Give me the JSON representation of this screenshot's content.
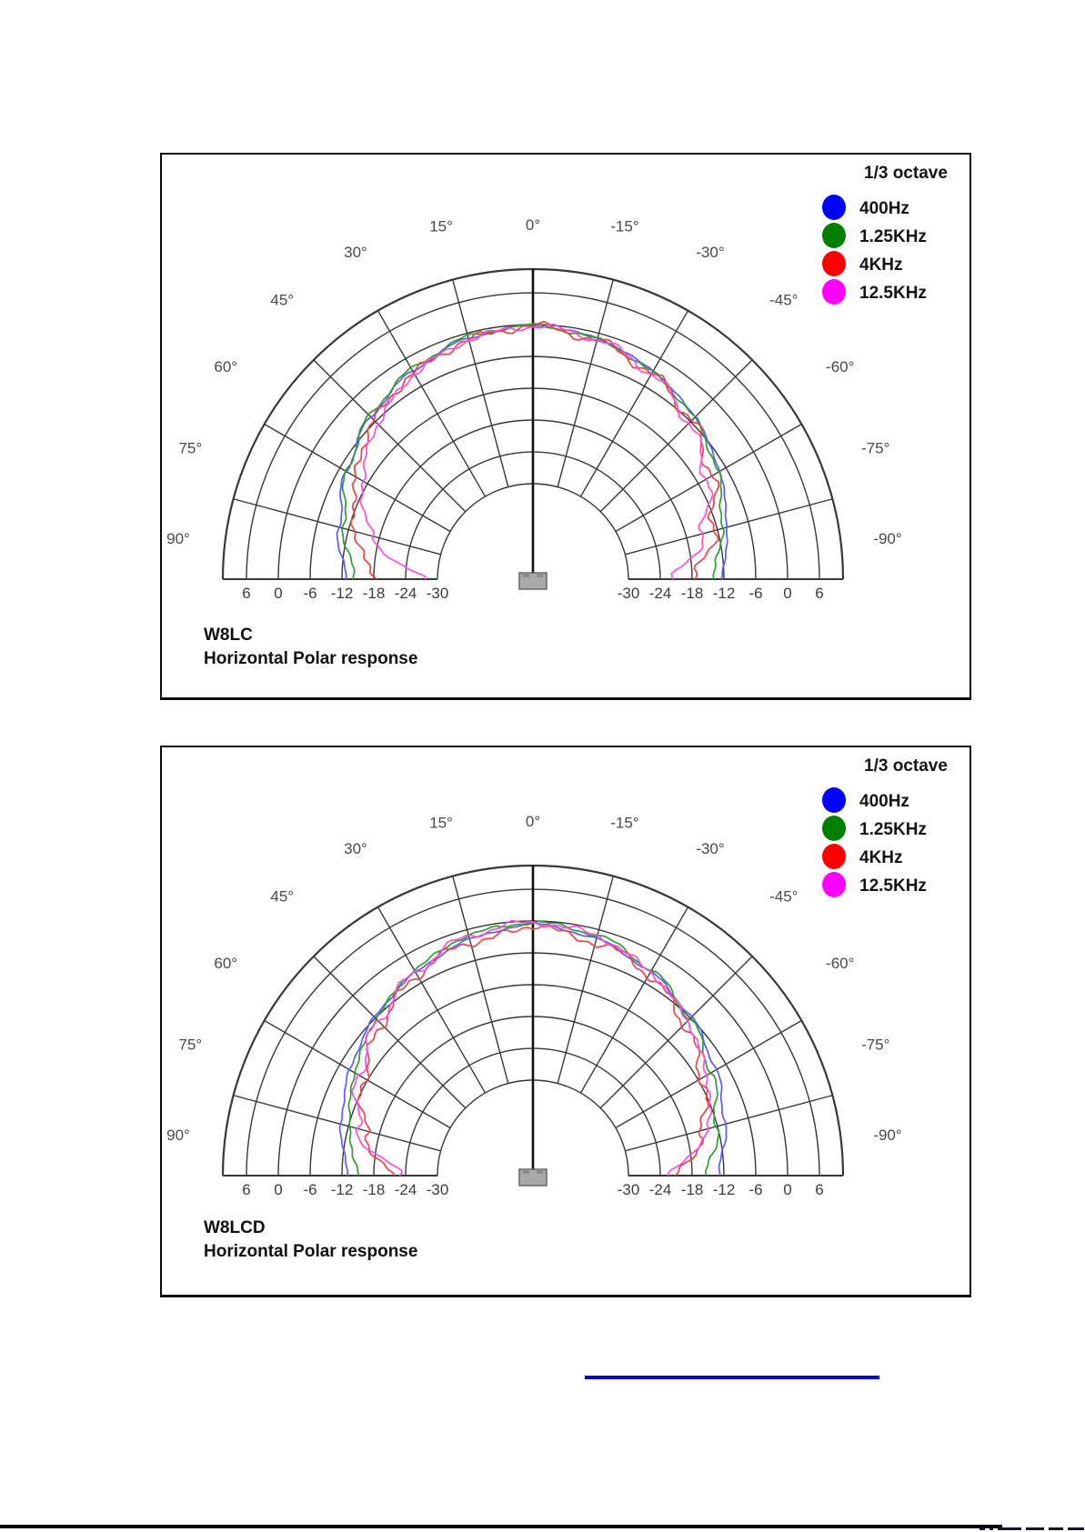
{
  "page": {
    "background": "#ffffff"
  },
  "footer": {
    "link_line_color": "#0000dd",
    "rule_color": "#000000",
    "clipped_text_note": "tiny clipped text fragments at bottom-right edge"
  },
  "chart_data": [
    {
      "type": "line-polar",
      "title": "W8LC",
      "subtitle": "Horizontal Polar response",
      "legend_title": "1/3 octave",
      "grid": true,
      "db_per_ring": 6,
      "db_rings": [
        6,
        0,
        -6,
        -12,
        -18,
        -24,
        -30
      ],
      "db_tick_labels_left": [
        "6",
        "0",
        "-6",
        "-12",
        "-18",
        "-24",
        "-30"
      ],
      "db_tick_labels_right": [
        "-30",
        "-24",
        "-18",
        "-12",
        "-6",
        "0",
        "6"
      ],
      "angle_tick_values": [
        90,
        75,
        60,
        45,
        30,
        15,
        0,
        -15,
        -30,
        -45,
        -60,
        -75,
        -90
      ],
      "angle_tick_labels": [
        "90°",
        "75°",
        "60°",
        "45°",
        "30°",
        "15°",
        "0°",
        "-15°",
        "-30°",
        "-45°",
        "-60°",
        "-75°",
        "-90°"
      ],
      "angles_deg": [
        -90,
        -75,
        -60,
        -45,
        -30,
        -15,
        0,
        15,
        30,
        45,
        60,
        75,
        90
      ],
      "series": [
        {
          "name": "400Hz",
          "color": "#0000ff",
          "curve_color": "#5b5bff",
          "db": [
            -12.5,
            -10.2,
            -7.4,
            -4.8,
            -2.7,
            -1.0,
            -0.2,
            -1.0,
            -2.7,
            -4.8,
            -7.4,
            -10.2,
            -12.7
          ]
        },
        {
          "name": "1.25KHz",
          "color": "#008000",
          "curve_color": "#2f9e2f",
          "db": [
            -14.2,
            -11.2,
            -7.8,
            -5.0,
            -3.0,
            -1.2,
            -0.2,
            -0.7,
            -2.3,
            -4.5,
            -7.6,
            -11.2,
            -14.5
          ]
        },
        {
          "name": "4KHz",
          "color": "#ff0000",
          "curve_color": "#ee4444",
          "db": [
            -17.5,
            -12.8,
            -9.2,
            -5.8,
            -3.3,
            -1.5,
            -0.3,
            -1.3,
            -3.1,
            -5.6,
            -9.4,
            -13.2,
            -18.5
          ]
        },
        {
          "name": "12.5KHz",
          "color": "#ff00ff",
          "curve_color": "#ff4fd8",
          "db": [
            -21.5,
            -14.8,
            -10.2,
            -6.4,
            -3.3,
            -1.2,
            -0.3,
            -1.3,
            -3.3,
            -6.6,
            -10.8,
            -16.5,
            -27.5
          ]
        }
      ]
    },
    {
      "type": "line-polar",
      "title": "W8LCD",
      "subtitle": "Horizontal Polar response",
      "legend_title": "1/3 octave",
      "grid": true,
      "db_per_ring": 6,
      "db_rings": [
        6,
        0,
        -6,
        -12,
        -18,
        -24,
        -30
      ],
      "db_tick_labels_left": [
        "6",
        "0",
        "-6",
        "-12",
        "-18",
        "-24",
        "-30"
      ],
      "db_tick_labels_right": [
        "-30",
        "-24",
        "-18",
        "-12",
        "-6",
        "0",
        "6"
      ],
      "angle_tick_values": [
        90,
        75,
        60,
        45,
        30,
        15,
        0,
        -15,
        -30,
        -45,
        -60,
        -75,
        -90
      ],
      "angle_tick_labels": [
        "90°",
        "75°",
        "60°",
        "45°",
        "30°",
        "15°",
        "0°",
        "-15°",
        "-30°",
        "-45°",
        "-60°",
        "-75°",
        "-90°"
      ],
      "angles_deg": [
        -90,
        -75,
        -60,
        -45,
        -30,
        -15,
        0,
        15,
        30,
        45,
        60,
        75,
        90
      ],
      "series": [
        {
          "name": "400Hz",
          "color": "#0000ff",
          "curve_color": "#5b5bff",
          "db": [
            -13.0,
            -10.6,
            -8.2,
            -5.8,
            -3.7,
            -1.8,
            -0.6,
            -1.9,
            -3.8,
            -5.8,
            -8.2,
            -10.6,
            -13.2
          ]
        },
        {
          "name": "1.25KHz",
          "color": "#008000",
          "curve_color": "#2f9e2f",
          "db": [
            -15.2,
            -12.2,
            -9.2,
            -6.2,
            -3.3,
            -1.1,
            -0.3,
            -1.1,
            -3.3,
            -6.2,
            -9.2,
            -12.2,
            -15.2
          ]
        },
        {
          "name": "4KHz",
          "color": "#ff0000",
          "curve_color": "#ee4444",
          "db": [
            -20.5,
            -14.8,
            -11.2,
            -7.6,
            -4.3,
            -2.0,
            -0.7,
            -2.0,
            -4.3,
            -7.6,
            -11.2,
            -15.2,
            -21.0
          ]
        },
        {
          "name": "12.5KHz",
          "color": "#ff00ff",
          "curve_color": "#ff4fd8",
          "db": [
            -22.5,
            -13.8,
            -10.2,
            -6.8,
            -3.7,
            -1.2,
            -0.3,
            -1.2,
            -3.7,
            -6.8,
            -10.2,
            -13.8,
            -23.0
          ]
        }
      ]
    }
  ]
}
